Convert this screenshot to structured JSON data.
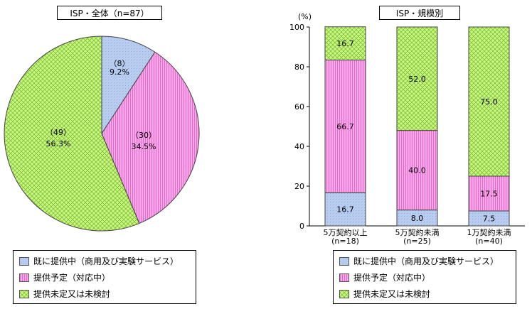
{
  "colors": {
    "existing": "#b8ccf0",
    "planned": "#f7a6e8",
    "undecided": "#c9f587",
    "existing_pattern": "#8faadb",
    "planned_pattern": "#d95cc6",
    "undecided_pattern": "#7fbf2a"
  },
  "legend": {
    "items": [
      {
        "key": "existing",
        "label": "既に提供中（商用及び実験サービス）"
      },
      {
        "key": "planned",
        "label": "提供予定（対応中）"
      },
      {
        "key": "undecided",
        "label": "提供未定又は未検討"
      }
    ]
  },
  "chart_data": [
    {
      "type": "pie",
      "title": "ISP・全体（n=87）",
      "slices": [
        {
          "key": "existing",
          "count": "（8）",
          "count_value": 8,
          "percent": 9.2,
          "percent_label": "9.2%"
        },
        {
          "key": "planned",
          "count": "（30）",
          "count_value": 30,
          "percent": 34.5,
          "percent_label": "34.5%"
        },
        {
          "key": "undecided",
          "count": "（49）",
          "count_value": 49,
          "percent": 56.3,
          "percent_label": "56.3%"
        }
      ]
    },
    {
      "type": "bar",
      "stacked": true,
      "title": "ISP・規模別",
      "y_unit": "(%)",
      "ylim": [
        0,
        100
      ],
      "yticks": [
        "0",
        "20",
        "40",
        "60",
        "80",
        "100"
      ],
      "categories": [
        {
          "name": "5万契約以上",
          "n": "(n=18)"
        },
        {
          "name": "5万契約未満",
          "n": "(n=25)"
        },
        {
          "name": "1万契約未満",
          "n": "(n=40)"
        }
      ],
      "series": [
        {
          "key": "existing",
          "values": [
            16.7,
            8.0,
            7.5
          ],
          "labels": [
            "16.7",
            "8.0",
            "7.5"
          ]
        },
        {
          "key": "planned",
          "values": [
            66.7,
            40.0,
            17.5
          ],
          "labels": [
            "66.7",
            "40.0",
            "17.5"
          ]
        },
        {
          "key": "undecided",
          "values": [
            16.7,
            52.0,
            75.0
          ],
          "labels": [
            "16.7",
            "52.0",
            "75.0"
          ]
        }
      ]
    }
  ]
}
